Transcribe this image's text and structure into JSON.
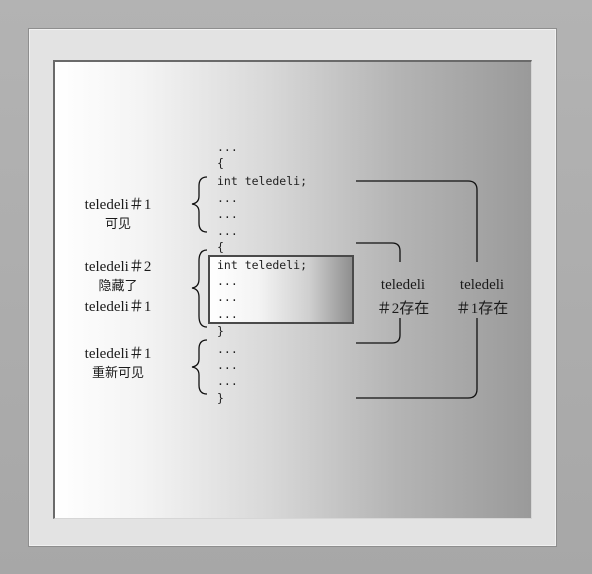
{
  "code": {
    "line0": "...",
    "line1": "{",
    "line2": "int teledeli;",
    "line3": "...",
    "line4": "...",
    "line5": "...",
    "line6": "{",
    "line7": "int teledeli;",
    "line8": "...",
    "line9": "...",
    "line10": "...",
    "line11": "}",
    "line12": "...",
    "line13": "...",
    "line14": "...",
    "line15": "}"
  },
  "left_labels": {
    "g1_title": "teledeli＃1",
    "g1_sub": "可见",
    "g2_title": "teledeli＃2",
    "g2_sub": "隐藏了",
    "g2_title2": "teledeli＃1",
    "g3_title": "teledeli＃1",
    "g3_sub": "重新可见"
  },
  "right_labels": {
    "r2_line1": "teledeli",
    "r2_line2": "＃2存在",
    "r1_line1": "teledeli",
    "r1_line2": "＃1存在"
  }
}
